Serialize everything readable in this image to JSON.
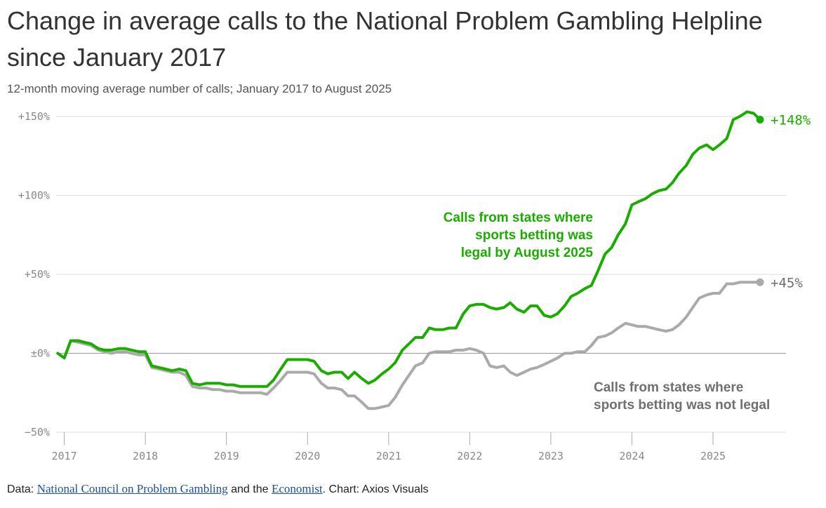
{
  "title": "Change in average calls to the National Problem Gambling Helpline since January 2017",
  "subtitle": "12-month moving average number of calls; January 2017 to August 2025",
  "footer": {
    "prefix": "Data: ",
    "source1": "National Council on Problem Gambling",
    "middle": " and the ",
    "source2": "Economist",
    "suffix": ". Chart: Axios Visuals"
  },
  "colors": {
    "legal": "#1aad00",
    "not_legal": "#aaaaaa",
    "not_legal_text": "#6f6f6f"
  },
  "chart_data": {
    "type": "line",
    "title": "Change in average calls to the National Problem Gambling Helpline since January 2017",
    "subtitle": "12-month moving average number of calls; January 2017 to August 2025",
    "xlabel": "",
    "ylabel": "",
    "x_range": [
      2016.9,
      2025.9
    ],
    "ylim": [
      -50,
      150
    ],
    "y_ticks": [
      150,
      100,
      50,
      0,
      -50
    ],
    "y_tick_labels": [
      "+150%",
      "+100%",
      "+50%",
      "±0%",
      "−50%"
    ],
    "x_ticks": [
      2017,
      2018,
      2019,
      2020,
      2021,
      2022,
      2023,
      2024,
      2025
    ],
    "x_tick_labels": [
      "2017",
      "2018",
      "2019",
      "2020",
      "2021",
      "2022",
      "2023",
      "2024",
      "2025"
    ],
    "grid": true,
    "series": [
      {
        "name": "Calls from states where sports betting was not legal",
        "label_lines": [
          "Calls from states where",
          "sports betting was not legal"
        ],
        "end_label": "+45%",
        "x": [
          2016.92,
          2017.0,
          2017.08,
          2017.17,
          2017.25,
          2017.33,
          2017.42,
          2017.5,
          2017.58,
          2017.67,
          2017.75,
          2017.83,
          2017.92,
          2018.0,
          2018.08,
          2018.17,
          2018.25,
          2018.33,
          2018.42,
          2018.5,
          2018.58,
          2018.67,
          2018.75,
          2018.83,
          2018.92,
          2019.0,
          2019.08,
          2019.17,
          2019.25,
          2019.33,
          2019.42,
          2019.5,
          2019.58,
          2019.67,
          2019.75,
          2019.83,
          2019.92,
          2020.0,
          2020.08,
          2020.17,
          2020.25,
          2020.33,
          2020.42,
          2020.5,
          2020.58,
          2020.67,
          2020.75,
          2020.83,
          2020.92,
          2021.0,
          2021.08,
          2021.17,
          2021.25,
          2021.33,
          2021.42,
          2021.5,
          2021.58,
          2021.67,
          2021.75,
          2021.83,
          2021.92,
          2022.0,
          2022.08,
          2022.17,
          2022.25,
          2022.33,
          2022.42,
          2022.5,
          2022.58,
          2022.67,
          2022.75,
          2022.83,
          2022.92,
          2023.0,
          2023.08,
          2023.17,
          2023.25,
          2023.33,
          2023.42,
          2023.5,
          2023.58,
          2023.67,
          2023.75,
          2023.83,
          2023.92,
          2024.0,
          2024.08,
          2024.17,
          2024.25,
          2024.33,
          2024.42,
          2024.5,
          2024.58,
          2024.67,
          2024.75,
          2024.83,
          2024.92,
          2025.0,
          2025.08,
          2025.17,
          2025.25,
          2025.33,
          2025.42,
          2025.5,
          2025.58
        ],
        "values": [
          0,
          -3,
          8,
          7,
          6,
          5,
          2,
          1,
          0,
          1,
          1,
          0,
          -1,
          -1,
          -9,
          -10,
          -11,
          -12,
          -12,
          -14,
          -21,
          -22,
          -22,
          -23,
          -23,
          -24,
          -24,
          -25,
          -25,
          -25,
          -25,
          -26,
          -22,
          -17,
          -12,
          -12,
          -12,
          -12,
          -13,
          -19,
          -22,
          -22,
          -23,
          -27,
          -27,
          -31,
          -35,
          -35,
          -34,
          -33,
          -28,
          -20,
          -14,
          -8,
          -6,
          0,
          1,
          1,
          1,
          2,
          2,
          3,
          2,
          0,
          -8,
          -9,
          -8,
          -12,
          -14,
          -12,
          -10,
          -9,
          -7,
          -5,
          -3,
          0,
          0,
          1,
          1,
          5,
          10,
          11,
          13,
          16,
          19,
          18,
          17,
          17,
          16,
          15,
          14,
          15,
          18,
          23,
          29,
          35,
          37,
          38,
          38,
          44,
          44,
          45,
          45,
          45,
          45
        ]
      },
      {
        "name": "Calls from states where sports betting was legal by August 2025",
        "label_lines": [
          "Calls from states where",
          "sports betting was",
          "legal by August 2025"
        ],
        "end_label": "+148%",
        "x": [
          2016.92,
          2017.0,
          2017.08,
          2017.17,
          2017.25,
          2017.33,
          2017.42,
          2017.5,
          2017.58,
          2017.67,
          2017.75,
          2017.83,
          2017.92,
          2018.0,
          2018.08,
          2018.17,
          2018.25,
          2018.33,
          2018.42,
          2018.5,
          2018.58,
          2018.67,
          2018.75,
          2018.83,
          2018.92,
          2019.0,
          2019.08,
          2019.17,
          2019.25,
          2019.33,
          2019.42,
          2019.5,
          2019.58,
          2019.67,
          2019.75,
          2019.83,
          2019.92,
          2020.0,
          2020.08,
          2020.17,
          2020.25,
          2020.33,
          2020.42,
          2020.5,
          2020.58,
          2020.67,
          2020.75,
          2020.83,
          2020.92,
          2021.0,
          2021.08,
          2021.17,
          2021.25,
          2021.33,
          2021.42,
          2021.5,
          2021.58,
          2021.67,
          2021.75,
          2021.83,
          2021.92,
          2022.0,
          2022.08,
          2022.17,
          2022.25,
          2022.33,
          2022.42,
          2022.5,
          2022.58,
          2022.67,
          2022.75,
          2022.83,
          2022.92,
          2023.0,
          2023.08,
          2023.17,
          2023.25,
          2023.33,
          2023.42,
          2023.5,
          2023.58,
          2023.67,
          2023.75,
          2023.83,
          2023.92,
          2024.0,
          2024.08,
          2024.17,
          2024.25,
          2024.33,
          2024.42,
          2024.5,
          2024.58,
          2024.67,
          2024.75,
          2024.83,
          2024.92,
          2025.0,
          2025.08,
          2025.17,
          2025.25,
          2025.33,
          2025.42,
          2025.5,
          2025.58
        ],
        "values": [
          0,
          -3,
          8,
          8,
          7,
          6,
          3,
          2,
          2,
          3,
          3,
          2,
          1,
          1,
          -8,
          -9,
          -10,
          -11,
          -10,
          -11,
          -19,
          -20,
          -19,
          -19,
          -19,
          -20,
          -20,
          -21,
          -21,
          -21,
          -21,
          -21,
          -17,
          -10,
          -4,
          -4,
          -4,
          -4,
          -5,
          -11,
          -13,
          -12,
          -12,
          -16,
          -12,
          -16,
          -19,
          -17,
          -13,
          -10,
          -6,
          2,
          6,
          10,
          10,
          16,
          15,
          15,
          16,
          16,
          25,
          30,
          31,
          31,
          29,
          28,
          29,
          32,
          28,
          26,
          30,
          30,
          24,
          23,
          25,
          30,
          36,
          38,
          41,
          43,
          52,
          63,
          67,
          75,
          82,
          94,
          96,
          98,
          101,
          103,
          104,
          108,
          114,
          119,
          126,
          130,
          132,
          129,
          132,
          136,
          148,
          150,
          153,
          152,
          148
        ]
      }
    ]
  }
}
